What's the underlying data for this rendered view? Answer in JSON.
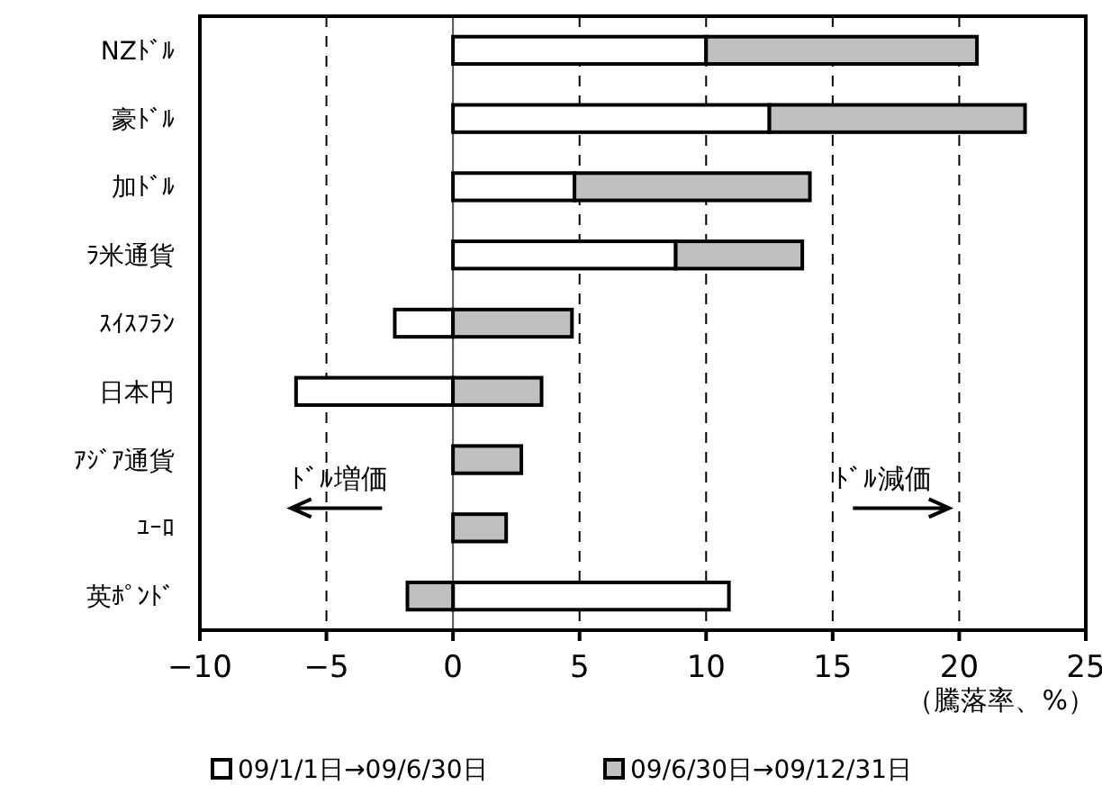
{
  "chart_data": {
    "type": "bar",
    "orientation": "horizontal",
    "stacked": true,
    "categories": [
      "NZﾄﾞﾙ",
      "豪ﾄﾞﾙ",
      "加ﾄﾞﾙ",
      "ﾗ米通貨",
      "ｽｲｽﾌﾗﾝ",
      "日本円",
      "ｱｼﾞｱ通貨",
      "ﾕｰﾛ",
      "英ﾎﾟﾝﾄﾞ"
    ],
    "series": [
      {
        "name": "09/1/1日→09/6/30日",
        "color": "#ffffff",
        "values": [
          10.0,
          12.5,
          4.8,
          8.8,
          -2.3,
          -6.2,
          0,
          0,
          10.9
        ]
      },
      {
        "name": "09/6/30日→09/12/31日",
        "color": "#c0c0c0",
        "values": [
          10.7,
          10.1,
          9.3,
          5.0,
          4.7,
          3.5,
          2.7,
          2.1,
          -1.8
        ]
      }
    ],
    "xlim": [
      -10,
      25
    ],
    "xticks": [
      -10,
      -5,
      0,
      5,
      10,
      15,
      20,
      25
    ],
    "xlabel": "（騰落率、%）",
    "grid": "x",
    "legend": "bottom",
    "annotations": [
      "ﾄﾞﾙ増価",
      "ﾄﾞﾙ減価"
    ]
  }
}
